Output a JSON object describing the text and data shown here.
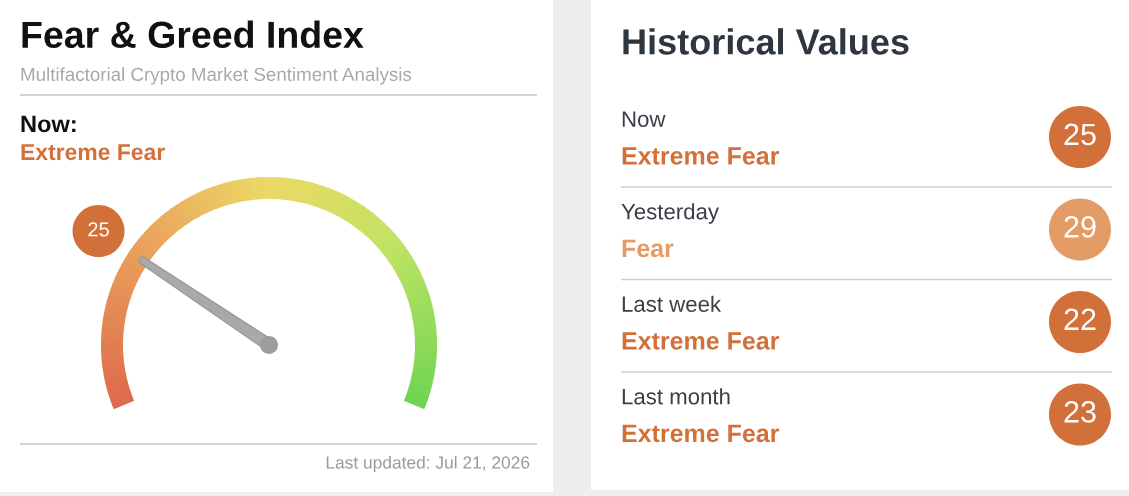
{
  "chart_data": [
    {
      "type": "other",
      "title": "Fear & Greed Index",
      "subtitle": "Multifactorial Crypto Market Sentiment Analysis",
      "values": [
        25
      ],
      "color": "#d2703a",
      "data_labels": true,
      "annotations": [
        "Now:",
        "Extreme Fear",
        "Last updated: Jul 21, 2026"
      ]
    },
    {
      "type": "other",
      "title": "Historical Values",
      "colors": [
        "#d2703a",
        "#e39c66",
        "#d2703a",
        "#d2703a"
      ],
      "annotations": [
        "Now",
        "Extreme Fear",
        "25",
        "Yesterday",
        "Fear",
        "29",
        "Last week",
        "Extreme Fear",
        "22",
        "Last month",
        "Extreme Fear",
        "23"
      ]
    }
  ]
}
